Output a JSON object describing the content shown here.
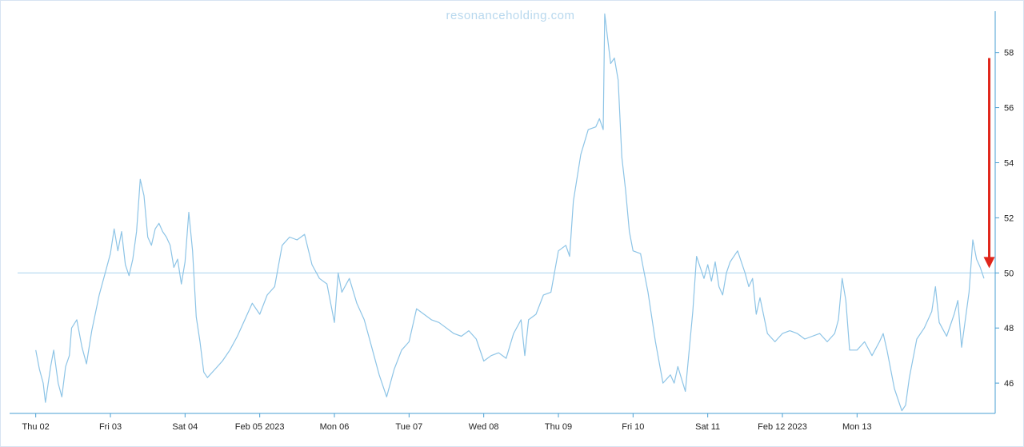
{
  "watermark": "resonanceholding.com",
  "chart_data": {
    "type": "line",
    "x_ticks": [
      "Thu 02",
      "Fri 03",
      "Sat 04",
      "Feb 05 2023",
      "Mon 06",
      "Tue 07",
      "Wed 08",
      "Thu 09",
      "Fri 10",
      "Sat 11",
      "Feb 12 2023",
      "Mon 13"
    ],
    "y_ticks": [
      46,
      48,
      50,
      52,
      54,
      56,
      58
    ],
    "ylim": [
      44.9,
      59.5
    ],
    "x_range_days": [
      -0.35,
      12.85
    ],
    "reference_line": 50,
    "grid": false,
    "legend": "none",
    "colors": {
      "series": "#8dc4e6",
      "axis": "#4a9fd3",
      "reference": "#a9d4ee",
      "arrow": "#e0261b"
    },
    "annotation": {
      "type": "arrow",
      "direction": "down",
      "x_days": 12.77,
      "from": 57.8,
      "to": 50.2
    },
    "series": [
      {
        "points": [
          [
            0.0,
            47.2
          ],
          [
            0.05,
            46.5
          ],
          [
            0.1,
            46.0
          ],
          [
            0.13,
            45.3
          ],
          [
            0.2,
            46.6
          ],
          [
            0.24,
            47.2
          ],
          [
            0.3,
            46.0
          ],
          [
            0.35,
            45.5
          ],
          [
            0.4,
            46.6
          ],
          [
            0.45,
            47.0
          ],
          [
            0.48,
            48.0
          ],
          [
            0.55,
            48.3
          ],
          [
            0.62,
            47.3
          ],
          [
            0.68,
            46.7
          ],
          [
            0.75,
            47.9
          ],
          [
            0.85,
            49.2
          ],
          [
            0.93,
            50.0
          ],
          [
            1.0,
            50.7
          ],
          [
            1.05,
            51.6
          ],
          [
            1.1,
            50.8
          ],
          [
            1.15,
            51.5
          ],
          [
            1.2,
            50.3
          ],
          [
            1.25,
            49.9
          ],
          [
            1.3,
            50.5
          ],
          [
            1.35,
            51.5
          ],
          [
            1.4,
            53.4
          ],
          [
            1.45,
            52.8
          ],
          [
            1.5,
            51.3
          ],
          [
            1.55,
            51.0
          ],
          [
            1.6,
            51.6
          ],
          [
            1.65,
            51.8
          ],
          [
            1.7,
            51.5
          ],
          [
            1.75,
            51.3
          ],
          [
            1.8,
            51.0
          ],
          [
            1.85,
            50.2
          ],
          [
            1.9,
            50.5
          ],
          [
            1.95,
            49.6
          ],
          [
            2.0,
            50.4
          ],
          [
            2.05,
            52.2
          ],
          [
            2.1,
            50.8
          ],
          [
            2.15,
            48.4
          ],
          [
            2.2,
            47.5
          ],
          [
            2.25,
            46.4
          ],
          [
            2.3,
            46.2
          ],
          [
            2.4,
            46.5
          ],
          [
            2.5,
            46.8
          ],
          [
            2.6,
            47.2
          ],
          [
            2.7,
            47.7
          ],
          [
            2.8,
            48.3
          ],
          [
            2.9,
            48.9
          ],
          [
            3.0,
            48.5
          ],
          [
            3.1,
            49.2
          ],
          [
            3.2,
            49.5
          ],
          [
            3.3,
            51.0
          ],
          [
            3.4,
            51.3
          ],
          [
            3.5,
            51.2
          ],
          [
            3.6,
            51.4
          ],
          [
            3.7,
            50.3
          ],
          [
            3.8,
            49.8
          ],
          [
            3.9,
            49.6
          ],
          [
            4.0,
            48.2
          ],
          [
            4.05,
            50.0
          ],
          [
            4.1,
            49.3
          ],
          [
            4.2,
            49.8
          ],
          [
            4.3,
            48.9
          ],
          [
            4.4,
            48.3
          ],
          [
            4.5,
            47.3
          ],
          [
            4.6,
            46.3
          ],
          [
            4.7,
            45.5
          ],
          [
            4.8,
            46.5
          ],
          [
            4.9,
            47.2
          ],
          [
            5.0,
            47.5
          ],
          [
            5.1,
            48.7
          ],
          [
            5.2,
            48.5
          ],
          [
            5.3,
            48.3
          ],
          [
            5.4,
            48.2
          ],
          [
            5.5,
            48.0
          ],
          [
            5.6,
            47.8
          ],
          [
            5.7,
            47.7
          ],
          [
            5.8,
            47.9
          ],
          [
            5.9,
            47.6
          ],
          [
            6.0,
            46.8
          ],
          [
            6.1,
            47.0
          ],
          [
            6.2,
            47.1
          ],
          [
            6.3,
            46.9
          ],
          [
            6.4,
            47.8
          ],
          [
            6.5,
            48.3
          ],
          [
            6.55,
            47.0
          ],
          [
            6.6,
            48.3
          ],
          [
            6.7,
            48.5
          ],
          [
            6.8,
            49.2
          ],
          [
            6.9,
            49.3
          ],
          [
            7.0,
            50.8
          ],
          [
            7.1,
            51.0
          ],
          [
            7.15,
            50.6
          ],
          [
            7.2,
            52.6
          ],
          [
            7.3,
            54.3
          ],
          [
            7.4,
            55.2
          ],
          [
            7.5,
            55.3
          ],
          [
            7.55,
            55.6
          ],
          [
            7.6,
            55.2
          ],
          [
            7.62,
            59.4
          ],
          [
            7.7,
            57.6
          ],
          [
            7.75,
            57.8
          ],
          [
            7.8,
            57.0
          ],
          [
            7.85,
            54.2
          ],
          [
            7.9,
            53.0
          ],
          [
            7.95,
            51.5
          ],
          [
            8.0,
            50.8
          ],
          [
            8.1,
            50.7
          ],
          [
            8.15,
            50.0
          ],
          [
            8.2,
            49.3
          ],
          [
            8.3,
            47.5
          ],
          [
            8.4,
            46.0
          ],
          [
            8.5,
            46.3
          ],
          [
            8.55,
            46.0
          ],
          [
            8.6,
            46.6
          ],
          [
            8.7,
            45.7
          ],
          [
            8.8,
            48.6
          ],
          [
            8.85,
            50.6
          ],
          [
            8.9,
            50.2
          ],
          [
            8.95,
            49.8
          ],
          [
            9.0,
            50.3
          ],
          [
            9.05,
            49.7
          ],
          [
            9.1,
            50.4
          ],
          [
            9.15,
            49.5
          ],
          [
            9.2,
            49.2
          ],
          [
            9.25,
            50.0
          ],
          [
            9.3,
            50.4
          ],
          [
            9.4,
            50.8
          ],
          [
            9.5,
            50.0
          ],
          [
            9.55,
            49.5
          ],
          [
            9.6,
            49.8
          ],
          [
            9.65,
            48.5
          ],
          [
            9.7,
            49.1
          ],
          [
            9.8,
            47.8
          ],
          [
            9.9,
            47.5
          ],
          [
            10.0,
            47.8
          ],
          [
            10.1,
            47.9
          ],
          [
            10.2,
            47.8
          ],
          [
            10.3,
            47.6
          ],
          [
            10.4,
            47.7
          ],
          [
            10.5,
            47.8
          ],
          [
            10.6,
            47.5
          ],
          [
            10.7,
            47.8
          ],
          [
            10.75,
            48.3
          ],
          [
            10.8,
            49.8
          ],
          [
            10.85,
            49.0
          ],
          [
            10.9,
            47.2
          ],
          [
            11.0,
            47.2
          ],
          [
            11.1,
            47.5
          ],
          [
            11.2,
            47.0
          ],
          [
            11.3,
            47.5
          ],
          [
            11.35,
            47.8
          ],
          [
            11.4,
            47.2
          ],
          [
            11.5,
            45.8
          ],
          [
            11.6,
            45.0
          ],
          [
            11.65,
            45.2
          ],
          [
            11.7,
            46.2
          ],
          [
            11.8,
            47.6
          ],
          [
            11.9,
            48.0
          ],
          [
            12.0,
            48.6
          ],
          [
            12.05,
            49.5
          ],
          [
            12.1,
            48.2
          ],
          [
            12.2,
            47.7
          ],
          [
            12.3,
            48.5
          ],
          [
            12.35,
            49.0
          ],
          [
            12.4,
            47.3
          ],
          [
            12.5,
            49.3
          ],
          [
            12.55,
            51.2
          ],
          [
            12.6,
            50.5
          ],
          [
            12.65,
            50.2
          ],
          [
            12.7,
            49.8
          ]
        ]
      }
    ]
  }
}
